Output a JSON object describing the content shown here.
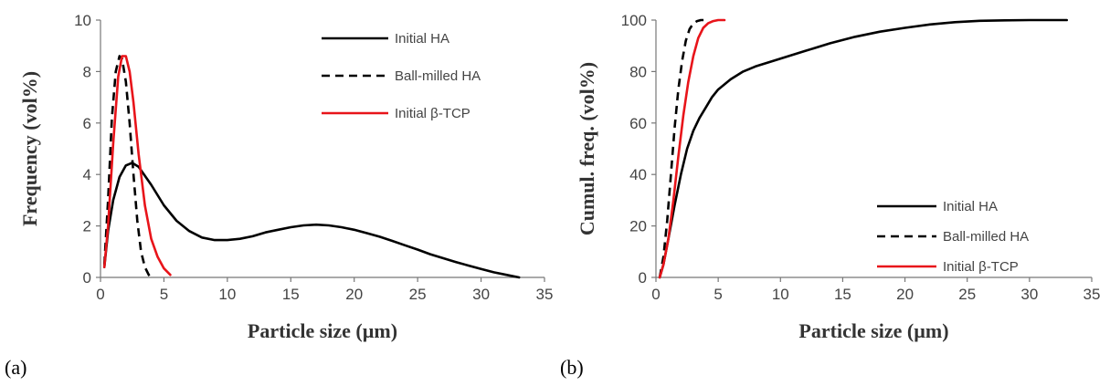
{
  "chart_data": [
    {
      "type": "line",
      "panel_label": "(a)",
      "xlabel": "Particle size (µm)",
      "ylabel": "Frequency (vol%)",
      "xlim": [
        0,
        35
      ],
      "ylim": [
        0,
        10
      ],
      "xticks": [
        "0",
        "5",
        "10",
        "15",
        "20",
        "25",
        "30",
        "35"
      ],
      "yticks": [
        "0",
        "2",
        "4",
        "6",
        "8",
        "10"
      ],
      "legend_position": "top-right",
      "series": [
        {
          "name": "Initial HA",
          "color": "#000000",
          "style": "solid",
          "x": [
            0.3,
            0.6,
            1.0,
            1.5,
            2.0,
            2.5,
            3.0,
            4.0,
            5.0,
            6.0,
            7.0,
            8.0,
            9.0,
            10.0,
            11.0,
            12.0,
            13.0,
            14.0,
            15.0,
            16.0,
            17.0,
            18.0,
            19.0,
            20.0,
            21.0,
            22.0,
            23.0,
            24.0,
            25.0,
            26.0,
            27.0,
            28.0,
            29.0,
            30.0,
            31.0,
            32.0,
            33.0
          ],
          "y": [
            0.4,
            1.8,
            3.0,
            3.9,
            4.35,
            4.45,
            4.3,
            3.6,
            2.8,
            2.2,
            1.8,
            1.55,
            1.45,
            1.45,
            1.5,
            1.6,
            1.75,
            1.85,
            1.95,
            2.02,
            2.05,
            2.02,
            1.95,
            1.85,
            1.72,
            1.58,
            1.42,
            1.25,
            1.08,
            0.9,
            0.75,
            0.6,
            0.46,
            0.33,
            0.2,
            0.1,
            0.0
          ]
        },
        {
          "name": "Ball-milled HA",
          "color": "#000000",
          "style": "dashed",
          "x": [
            0.3,
            0.6,
            0.9,
            1.2,
            1.5,
            1.7,
            2.0,
            2.3,
            2.6,
            2.9,
            3.2,
            3.5,
            3.8,
            4.0
          ],
          "y": [
            0.5,
            3.0,
            6.2,
            8.0,
            8.6,
            8.5,
            7.6,
            6.0,
            4.0,
            2.2,
            1.0,
            0.4,
            0.1,
            0.0
          ]
        },
        {
          "name": "Initial β-TCP",
          "color": "#e8141a",
          "style": "solid",
          "x": [
            0.3,
            0.6,
            1.0,
            1.4,
            1.7,
            2.0,
            2.3,
            2.6,
            3.0,
            3.5,
            4.0,
            4.5,
            5.0,
            5.5
          ],
          "y": [
            0.4,
            2.0,
            5.2,
            7.8,
            8.6,
            8.6,
            8.0,
            6.8,
            4.8,
            2.8,
            1.5,
            0.8,
            0.35,
            0.1
          ]
        }
      ]
    },
    {
      "type": "line",
      "panel_label": "(b)",
      "xlabel": "Particle size (µm)",
      "ylabel": "Cumul. freq. (vol%)",
      "xlim": [
        0,
        35
      ],
      "ylim": [
        0,
        100
      ],
      "xticks": [
        "0",
        "5",
        "10",
        "15",
        "20",
        "25",
        "30",
        "35"
      ],
      "yticks": [
        "0",
        "20",
        "40",
        "60",
        "80",
        "100"
      ],
      "legend_position": "bottom-right",
      "series": [
        {
          "name": "Initial HA",
          "color": "#000000",
          "style": "solid",
          "x": [
            0.3,
            0.6,
            1.0,
            1.5,
            2.0,
            2.5,
            3.0,
            3.5,
            4.0,
            4.5,
            5.0,
            6.0,
            7.0,
            8.0,
            9.0,
            10.0,
            12.0,
            14.0,
            16.0,
            18.0,
            20.0,
            22.0,
            24.0,
            26.0,
            28.0,
            30.0,
            33.0
          ],
          "y": [
            0,
            5,
            15,
            28,
            40,
            50,
            57,
            62,
            66,
            70,
            73,
            77,
            80,
            82,
            83.5,
            85,
            88,
            91,
            93.5,
            95.5,
            97,
            98.3,
            99.2,
            99.7,
            99.9,
            100,
            100
          ]
        },
        {
          "name": "Ball-milled HA",
          "color": "#000000",
          "style": "dashed",
          "x": [
            0.3,
            0.6,
            0.9,
            1.2,
            1.5,
            1.8,
            2.1,
            2.4,
            2.7,
            3.0,
            3.3,
            3.6,
            4.0
          ],
          "y": [
            0,
            8,
            22,
            40,
            58,
            73,
            84,
            92,
            96.5,
            98.7,
            99.6,
            100,
            100
          ]
        },
        {
          "name": "Initial β-TCP",
          "color": "#e8141a",
          "style": "solid",
          "x": [
            0.3,
            0.6,
            1.0,
            1.4,
            1.8,
            2.2,
            2.6,
            3.0,
            3.4,
            3.8,
            4.2,
            4.6,
            5.0,
            5.5
          ],
          "y": [
            0,
            5,
            15,
            30,
            47,
            63,
            76,
            86,
            93,
            97,
            98.8,
            99.6,
            100,
            100
          ]
        }
      ]
    }
  ]
}
